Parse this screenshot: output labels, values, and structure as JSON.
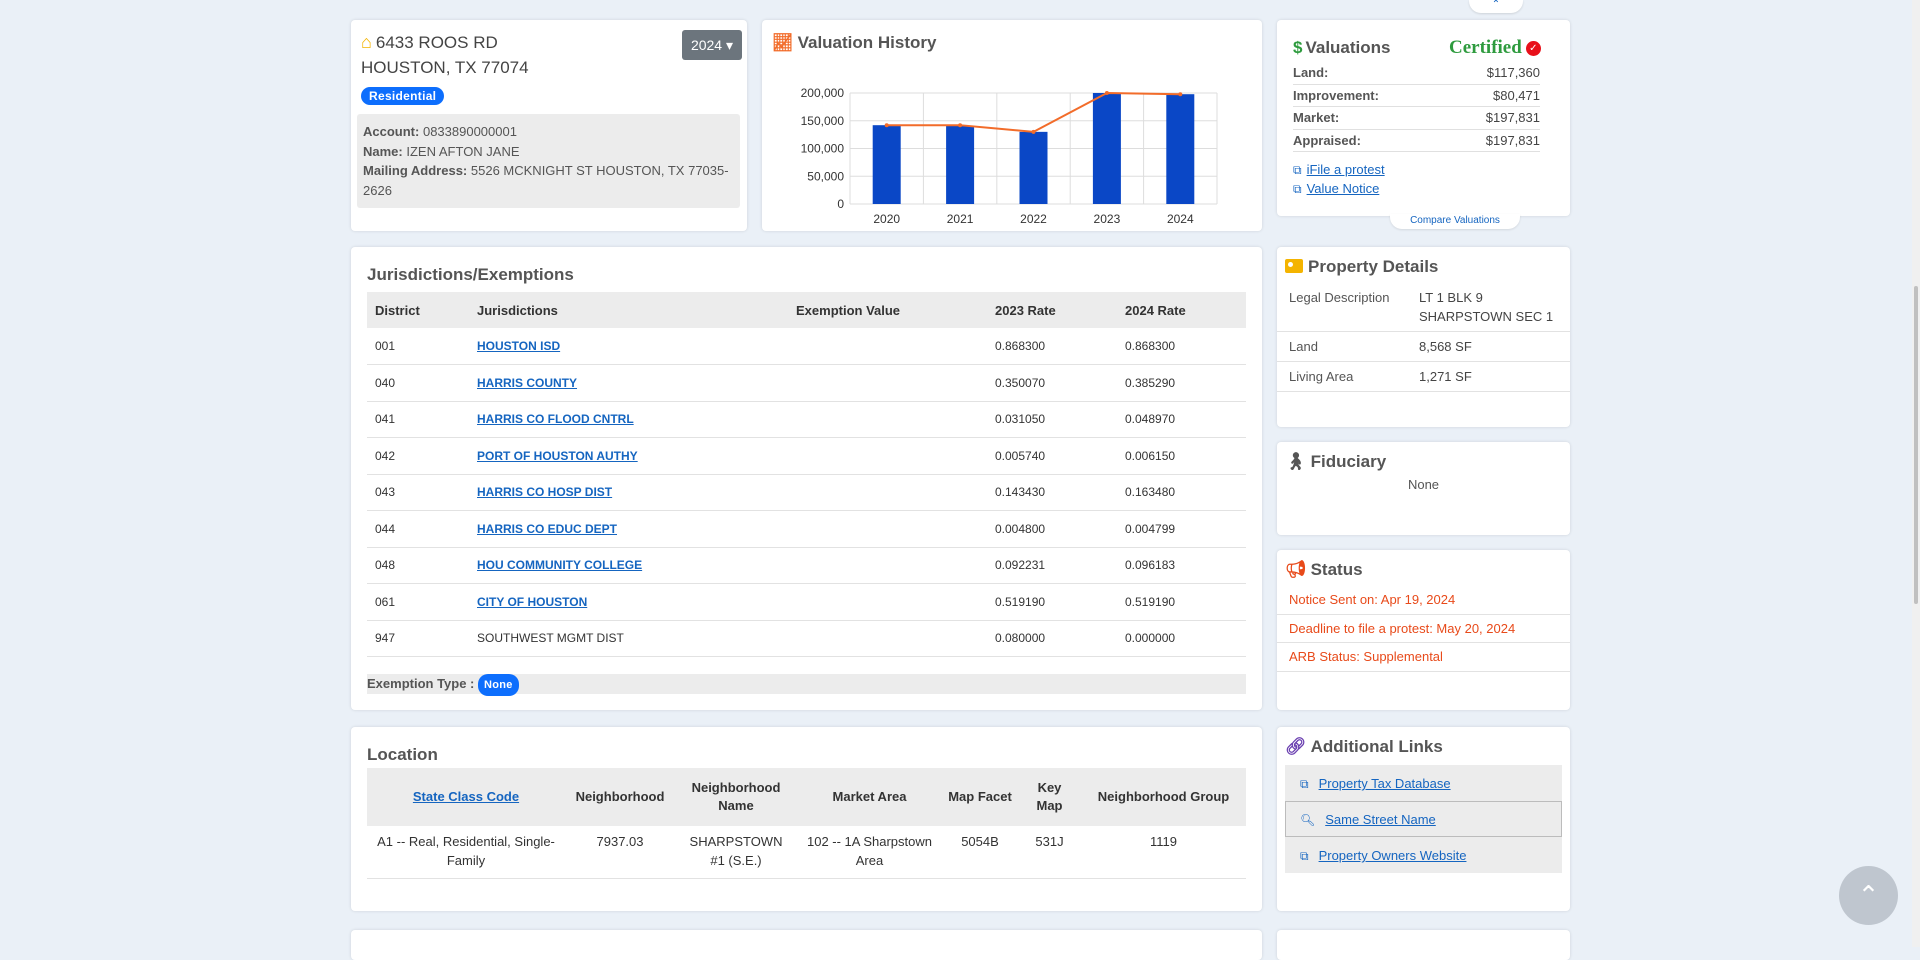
{
  "address": {
    "line1": "6433 ROOS RD",
    "line2": "HOUSTON, TX 77074",
    "year": "2024",
    "property_type": "Residential",
    "account_label": "Account:",
    "account": "0833890000001",
    "name_label": "Name:",
    "name": "IZEN AFTON JANE",
    "mailing_label": "Mailing Address:",
    "mailing": "5526 MCKNIGHT ST HOUSTON, TX 77035-2626"
  },
  "history": {
    "title": "Valuation History"
  },
  "chart_data": {
    "type": "bar",
    "categories": [
      "2020",
      "2021",
      "2022",
      "2023",
      "2024"
    ],
    "series": [
      {
        "values": [
          142000,
          141000,
          130000,
          200000,
          197831
        ],
        "color": "#0a47c6",
        "kind": "bar"
      },
      {
        "values": [
          142000,
          142000,
          130000,
          200000,
          197831
        ],
        "color": "#f26c2a",
        "kind": "line"
      }
    ],
    "yticks": [
      "0",
      "50,000",
      "100,000",
      "150,000",
      "200,000"
    ],
    "ylim": [
      0,
      200000
    ],
    "grid": true
  },
  "valuations": {
    "title": "Valuations",
    "status": "Certified",
    "rows": [
      {
        "label": "Land:",
        "value": "$117,360"
      },
      {
        "label": "Improvement:",
        "value": "$80,471"
      },
      {
        "label": "Market:",
        "value": "$197,831"
      },
      {
        "label": "Appraised:",
        "value": "$197,831"
      }
    ],
    "link_protest": "iFile a protest",
    "link_notice": "Value Notice",
    "compare": "Compare Valuations"
  },
  "jurisdictions": {
    "title": "Jurisdictions/Exemptions",
    "headers": [
      "District",
      "Jurisdictions",
      "Exemption Value",
      "2023 Rate",
      "2024 Rate"
    ],
    "rows": [
      {
        "district": "001",
        "name": "HOUSTON ISD",
        "link": true,
        "exemption": "",
        "rate2023": "0.868300",
        "rate2024": "0.868300"
      },
      {
        "district": "040",
        "name": "HARRIS COUNTY",
        "link": true,
        "exemption": "",
        "rate2023": "0.350070",
        "rate2024": "0.385290"
      },
      {
        "district": "041",
        "name": "HARRIS CO FLOOD CNTRL",
        "link": true,
        "exemption": "",
        "rate2023": "0.031050",
        "rate2024": "0.048970"
      },
      {
        "district": "042",
        "name": "PORT OF HOUSTON AUTHY",
        "link": true,
        "exemption": "",
        "rate2023": "0.005740",
        "rate2024": "0.006150"
      },
      {
        "district": "043",
        "name": "HARRIS CO HOSP DIST",
        "link": true,
        "exemption": "",
        "rate2023": "0.143430",
        "rate2024": "0.163480"
      },
      {
        "district": "044",
        "name": "HARRIS CO EDUC DEPT",
        "link": true,
        "exemption": "",
        "rate2023": "0.004800",
        "rate2024": "0.004799"
      },
      {
        "district": "048",
        "name": "HOU COMMUNITY COLLEGE",
        "link": true,
        "exemption": "",
        "rate2023": "0.092231",
        "rate2024": "0.096183"
      },
      {
        "district": "061",
        "name": "CITY OF HOUSTON",
        "link": true,
        "exemption": "",
        "rate2023": "0.519190",
        "rate2024": "0.519190"
      },
      {
        "district": "947",
        "name": "SOUTHWEST MGMT DIST",
        "link": false,
        "exemption": "",
        "rate2023": "0.080000",
        "rate2024": "0.000000"
      }
    ],
    "exemption_type_label": "Exemption Type :",
    "exemption_type": "None"
  },
  "location": {
    "title": "Location",
    "headers": [
      "State Class Code",
      "Neighborhood",
      "Neighborhood Name",
      "Market Area",
      "Map Facet",
      "Key Map",
      "Neighborhood Group"
    ],
    "row": [
      "A1 -- Real, Residential, Single-Family",
      "7937.03",
      "SHARPSTOWN #1 (S.E.)",
      "102 -- 1A Sharpstown Area",
      "5054B",
      "531J",
      "1119"
    ]
  },
  "property_details": {
    "title": "Property Details",
    "rows": [
      {
        "label": "Legal Description",
        "value": "LT 1 BLK 9 SHARPSTOWN SEC 1"
      },
      {
        "label": "Land",
        "value": "8,568 SF"
      },
      {
        "label": "Living Area",
        "value": "1,271 SF"
      }
    ]
  },
  "fiduciary": {
    "title": "Fiduciary",
    "value": "None"
  },
  "status": {
    "title": "Status",
    "items": [
      "Notice Sent on: Apr 19, 2024",
      "Deadline to file a protest: May 20, 2024",
      "ARB Status: Supplemental"
    ]
  },
  "links": {
    "title": "Additional Links",
    "items": [
      "Property Tax Database",
      "Same Street Name",
      "Property Owners Website"
    ]
  },
  "icons": {
    "home": "home-icon",
    "chart": "line-chart-icon",
    "dollar": "dollar-icon",
    "check": "check-circle-icon",
    "external": "external-link-icon",
    "idcard": "id-card-icon",
    "fiduciary": "person-icon",
    "status": "megaphone-icon",
    "links": "link-icon",
    "search": "search-icon",
    "arrow_up": "chevron-up-icon"
  },
  "colors": {
    "background": "#eaf0f7",
    "link": "#1565c0",
    "certified": "#2e9b3e",
    "status": "#e84a1a",
    "bar": "#0a47c6",
    "line": "#f26c2a"
  }
}
